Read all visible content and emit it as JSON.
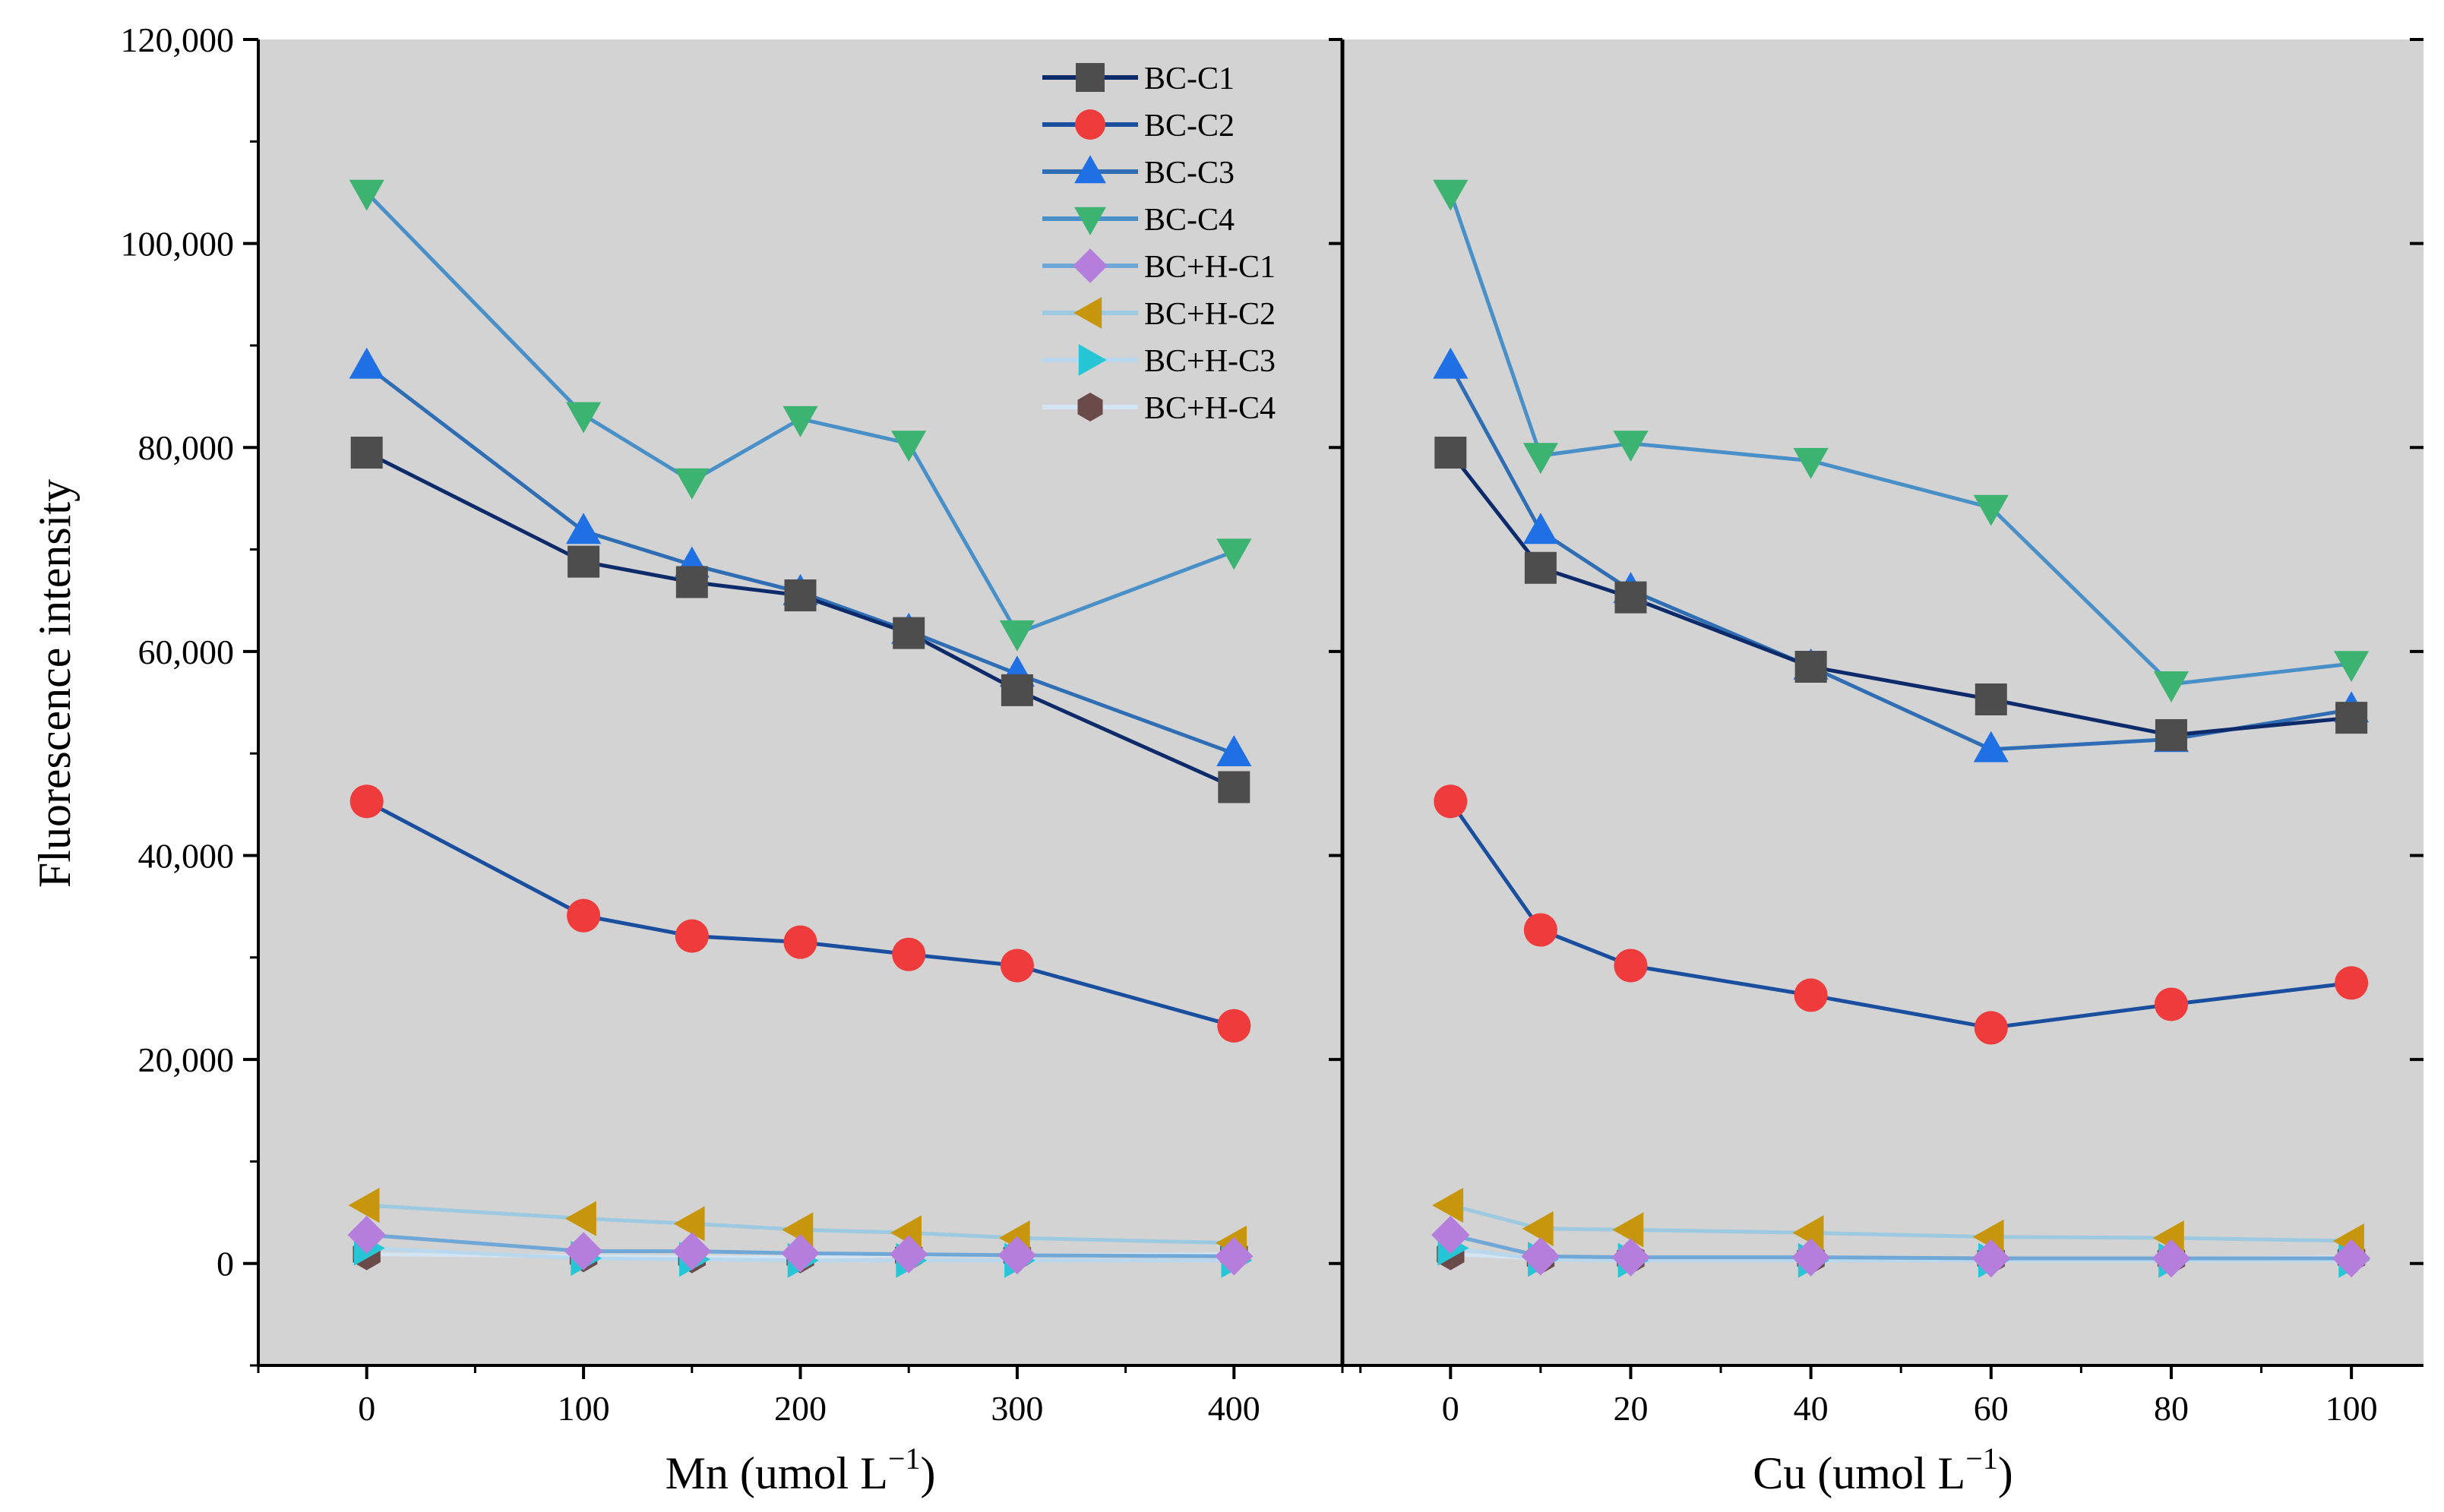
{
  "chart_data": {
    "type": "line",
    "y_label": "Fluorescence intensity",
    "y_range": [
      -10000,
      120000
    ],
    "y_ticks": [
      0,
      20000,
      40000,
      60000,
      80000,
      100000,
      120000
    ],
    "y_tick_labels": [
      "0",
      "20,000",
      "40,000",
      "60,000",
      "80,000",
      "100,000",
      "120,000"
    ],
    "legend": {
      "position": "top-left of right panel",
      "entries": [
        "BC-C1",
        "BC-C2",
        "BC-C3",
        "BC-C4",
        "BC+H-C1",
        "BC+H-C2",
        "BC+H-C3",
        "BC+H-C4"
      ]
    },
    "series_styles": [
      {
        "name": "BC-C1",
        "marker": "square",
        "marker_color": "#4d4d4d",
        "line_color": "#0d2b6b"
      },
      {
        "name": "BC-C2",
        "marker": "circle",
        "marker_color": "#ef3b3b",
        "line_color": "#1a4fa0"
      },
      {
        "name": "BC-C3",
        "marker": "triangle-up",
        "marker_color": "#1f6fe5",
        "line_color": "#2f6eb5"
      },
      {
        "name": "BC-C4",
        "marker": "triangle-down",
        "marker_color": "#3cb371",
        "line_color": "#4a90c8"
      },
      {
        "name": "BC+H-C1",
        "marker": "diamond",
        "marker_color": "#b57edc",
        "line_color": "#6fa8d6"
      },
      {
        "name": "BC+H-C2",
        "marker": "triangle-left",
        "marker_color": "#c8960c",
        "line_color": "#9ecae1"
      },
      {
        "name": "BC+H-C3",
        "marker": "triangle-right",
        "marker_color": "#27c6d6",
        "line_color": "#b9d8ee"
      },
      {
        "name": "BC+H-C4",
        "marker": "hexagon",
        "marker_color": "#6b4a4a",
        "line_color": "#d3e4f2"
      }
    ],
    "panels": [
      {
        "x_label_main": "Mn (umol L",
        "x_label_sup": "−1",
        "x_label_close": ")",
        "x_range": [
          -50,
          450
        ],
        "x_ticks": [
          0,
          100,
          200,
          300,
          400
        ],
        "x_tick_labels": [
          "0",
          "100",
          "200",
          "300",
          "400"
        ],
        "x": [
          0,
          100,
          150,
          200,
          250,
          300,
          400
        ],
        "series": [
          {
            "name": "BC-C1",
            "values": [
              79500,
              68800,
              66800,
              65500,
              61800,
              56200,
              46700
            ]
          },
          {
            "name": "BC-C2",
            "values": [
              45300,
              34100,
              32100,
              31500,
              30300,
              29200,
              23300
            ]
          },
          {
            "name": "BC-C3",
            "values": [
              88000,
              71800,
              68500,
              65800,
              62000,
              57800,
              50000
            ]
          },
          {
            "name": "BC-C4",
            "values": [
              105000,
              83200,
              76700,
              82800,
              80400,
              61800,
              69800
            ]
          },
          {
            "name": "BC+H-C1",
            "values": [
              2800,
              1200,
              1200,
              1000,
              900,
              800,
              700
            ]
          },
          {
            "name": "BC+H-C2",
            "values": [
              5700,
              4400,
              3900,
              3300,
              3000,
              2500,
              2000
            ]
          },
          {
            "name": "BC+H-C3",
            "values": [
              1500,
              500,
              400,
              300,
              300,
              300,
              300
            ]
          },
          {
            "name": "BC+H-C4",
            "values": [
              900,
              700,
              600,
              600,
              800,
              800,
              900
            ]
          }
        ]
      },
      {
        "x_label_main": "Cu (umol L",
        "x_label_sup": "−1",
        "x_label_close": ")",
        "x_range": [
          -12,
          108
        ],
        "x_ticks": [
          0,
          20,
          40,
          60,
          80,
          100
        ],
        "x_tick_labels": [
          "0",
          "20",
          "40",
          "60",
          "80",
          "100"
        ],
        "x": [
          0,
          10,
          20,
          40,
          60,
          80,
          100
        ],
        "series": [
          {
            "name": "BC-C1",
            "values": [
              79500,
              68200,
              65300,
              58500,
              55300,
              51800,
              53500
            ]
          },
          {
            "name": "BC-C2",
            "values": [
              45300,
              32700,
              29200,
              26300,
              23100,
              25400,
              27500
            ]
          },
          {
            "name": "BC-C3",
            "values": [
              88000,
              71800,
              66000,
              58500,
              50400,
              51400,
              54300
            ]
          },
          {
            "name": "BC-C4",
            "values": [
              105000,
              79200,
              80400,
              78700,
              74100,
              56800,
              58800
            ]
          },
          {
            "name": "BC+H-C1",
            "values": [
              2800,
              700,
              600,
              600,
              500,
              500,
              500
            ]
          },
          {
            "name": "BC+H-C2",
            "values": [
              5700,
              3400,
              3300,
              3000,
              2600,
              2500,
              2200
            ]
          },
          {
            "name": "BC+H-C3",
            "values": [
              1500,
              400,
              300,
              300,
              300,
              300,
              300
            ]
          },
          {
            "name": "BC+H-C4",
            "values": [
              900,
              500,
              500,
              500,
              500,
              500,
              600
            ]
          }
        ]
      }
    ]
  }
}
